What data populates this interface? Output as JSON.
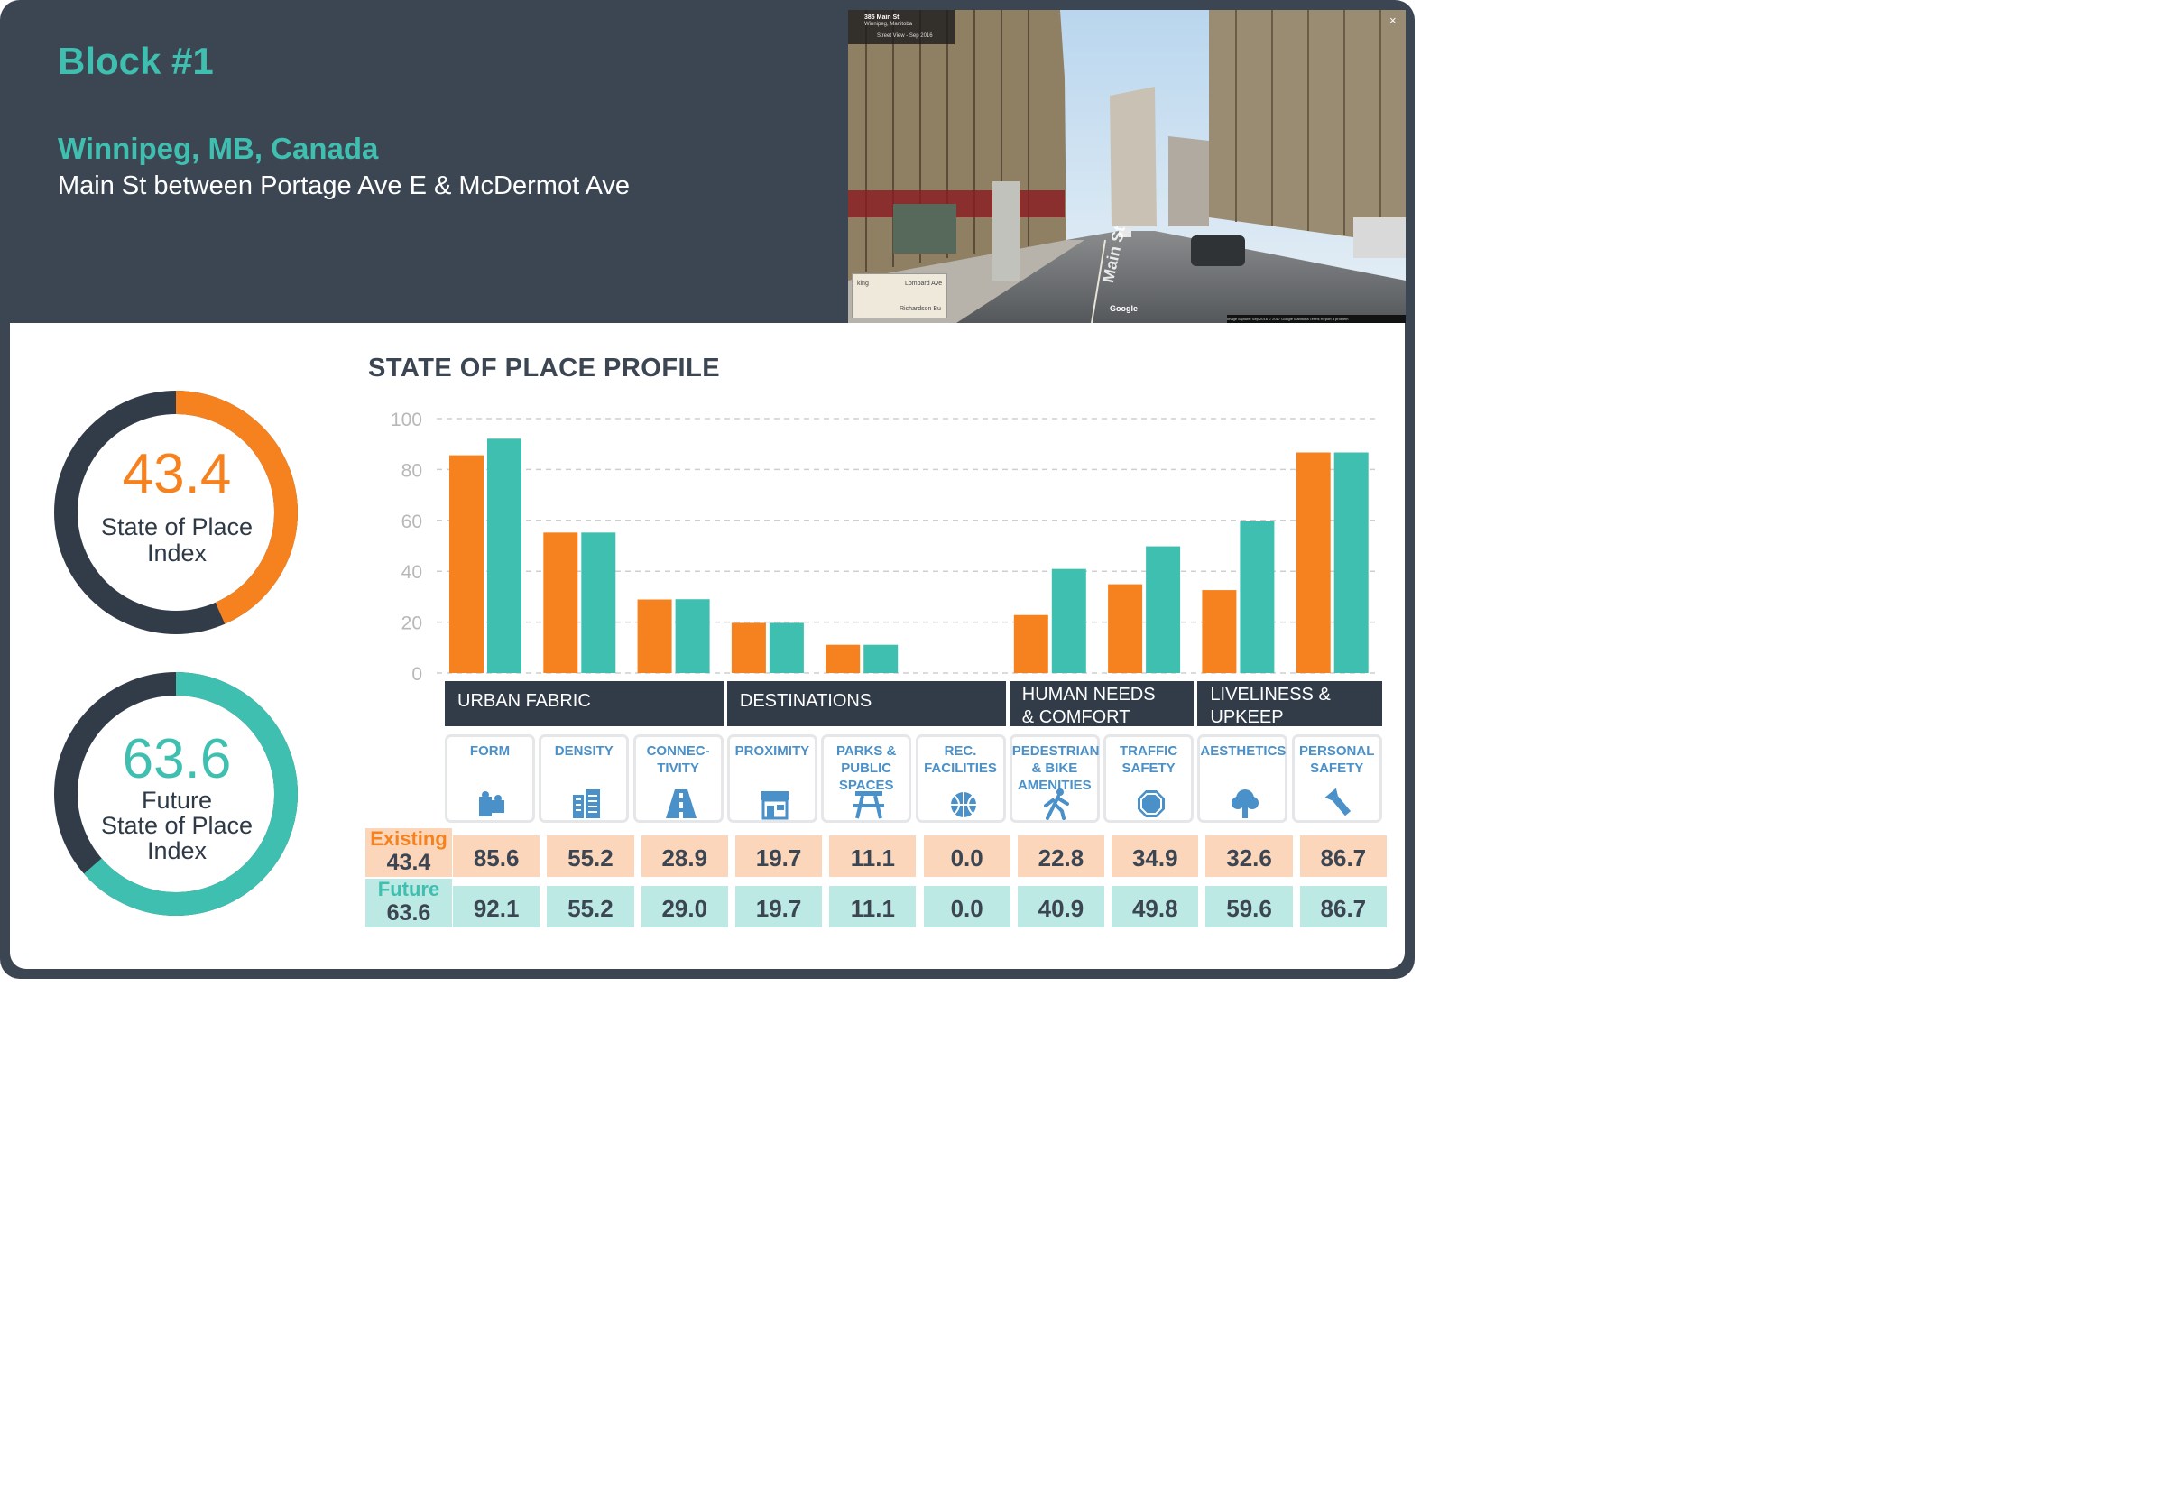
{
  "header": {
    "block": "Block #1",
    "city": "Winnipeg, MB, Canada",
    "street": "Main St between Portage Ave E & McDermot Ave"
  },
  "photo": {
    "address": "385 Main St",
    "city": "Winnipeg, Manitoba",
    "street_view": "Street View - Sep 2016",
    "map_label_1": "Lombard Ave",
    "map_label_2": "Richardson Bu",
    "map_label_3": "king",
    "street_sign": "Main St",
    "brand": "Google",
    "footer": "Image capture: Sep 2016   © 2017 Google   Manitoba   Terms   Report a problem",
    "close": "×"
  },
  "indices": {
    "existing": {
      "value": "43.4",
      "label_1": "State of Place",
      "label_2": "Index",
      "fraction": 0.434,
      "color": "#f5821f"
    },
    "future": {
      "value": "63.6",
      "label_1": "Future",
      "label_2": "State of Place",
      "label_3": "Index",
      "fraction": 0.636,
      "color": "#3fbfb0"
    }
  },
  "chart_data": {
    "type": "bar",
    "title": "STATE OF PLACE PROFILE",
    "categories": [
      "FORM",
      "DENSITY",
      "CONNEC-\nTIVITY",
      "PROXIMITY",
      "PARKS &\nPUBLIC\nSPACES",
      "REC.\nFACILITIES",
      "PEDESTRIAN\n& BIKE\nAMENITIES",
      "TRAFFIC\nSAFETY",
      "AESTHETICS",
      "PERSONAL\nSAFETY"
    ],
    "series": [
      {
        "name": "Existing",
        "values": [
          85.6,
          55.2,
          28.9,
          19.7,
          11.1,
          0.0,
          22.8,
          34.9,
          32.6,
          86.7
        ],
        "color": "#f5821f"
      },
      {
        "name": "Future",
        "values": [
          92.1,
          55.2,
          29.0,
          19.7,
          11.1,
          0.0,
          40.9,
          49.8,
          59.6,
          86.7
        ],
        "color": "#3fbfb0"
      }
    ],
    "ylim": [
      0,
      100
    ],
    "yticks": [
      "0",
      "20",
      "40",
      "60",
      "80",
      "100"
    ],
    "grid": true,
    "groups": [
      {
        "label": "URBAN FABRIC",
        "span": 3
      },
      {
        "label": "DESTINATIONS",
        "span": 3
      },
      {
        "label": "HUMAN NEEDS\n& COMFORT",
        "span": 2
      },
      {
        "label": "LIVELINESS &\nUPKEEP",
        "span": 2
      }
    ],
    "icons": [
      "puzzle-icon",
      "buildings-icon",
      "road-icon",
      "storefront-icon",
      "picnic-table-icon",
      "basketball-icon",
      "walking-person-icon",
      "stop-sign-icon",
      "tree-icon",
      "flashlight-icon"
    ]
  },
  "table": {
    "existing": {
      "name": "Existing",
      "value": "43.4",
      "cells": [
        "85.6",
        "55.2",
        "28.9",
        "19.7",
        "11.1",
        "0.0",
        "22.8",
        "34.9",
        "32.6",
        "86.7"
      ],
      "tag_bg": "#fbd6bb",
      "name_color": "#f5821f"
    },
    "future": {
      "name": "Future",
      "value": "63.6",
      "cells": [
        "92.1",
        "55.2",
        "29.0",
        "19.7",
        "11.1",
        "0.0",
        "40.9",
        "49.8",
        "59.6",
        "86.7"
      ],
      "tag_bg": "#bce9e3",
      "name_color": "#3fbfb0"
    }
  }
}
